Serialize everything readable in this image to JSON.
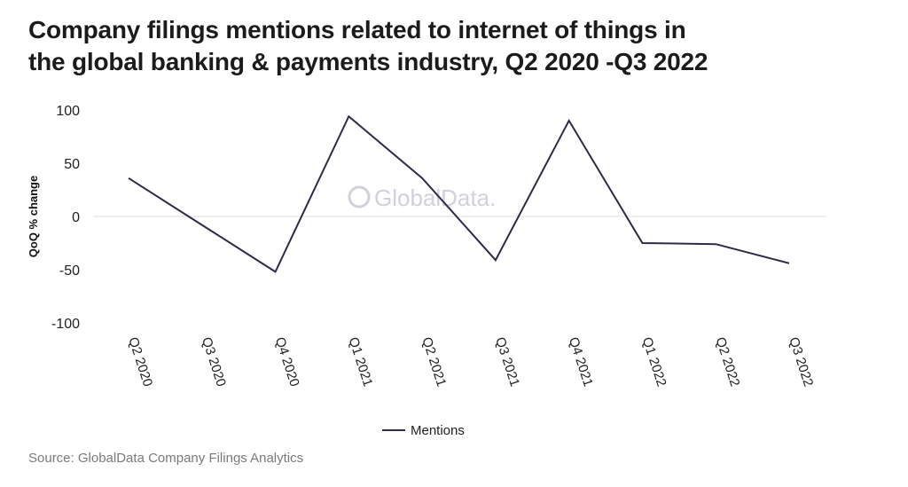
{
  "title_line1": "Company filings mentions related to internet of things in",
  "title_line2": "the global banking & payments industry, Q2 2020 -Q3 2022",
  "source": "Source: GlobalData Company Filings Analytics",
  "watermark": "GlobalData.",
  "colors": {
    "line": "#2f2a4a",
    "zero_line": "#dddddd",
    "watermark": "#c9c9d6"
  },
  "chart_data": {
    "type": "line",
    "title": "Company filings mentions related to internet of things in the global banking & payments industry, Q2 2020 -Q3 2022",
    "ylabel": "QoQ % change",
    "xlabel": "",
    "ylim": [
      -100,
      100
    ],
    "yticks": [
      100,
      50,
      0,
      -50,
      -100
    ],
    "categories": [
      "Q2 2020",
      "Q3 2020",
      "Q4 2020",
      "Q1 2021",
      "Q2 2021",
      "Q3 2021",
      "Q4 2021",
      "Q1 2022",
      "Q2 2022",
      "Q3 2022"
    ],
    "series": [
      {
        "name": "Mentions",
        "values": [
          36,
          -8,
          -52,
          94,
          36,
          -41,
          90,
          -25,
          -26,
          -44
        ]
      }
    ],
    "legend_position": "bottom-center",
    "grid": false
  }
}
